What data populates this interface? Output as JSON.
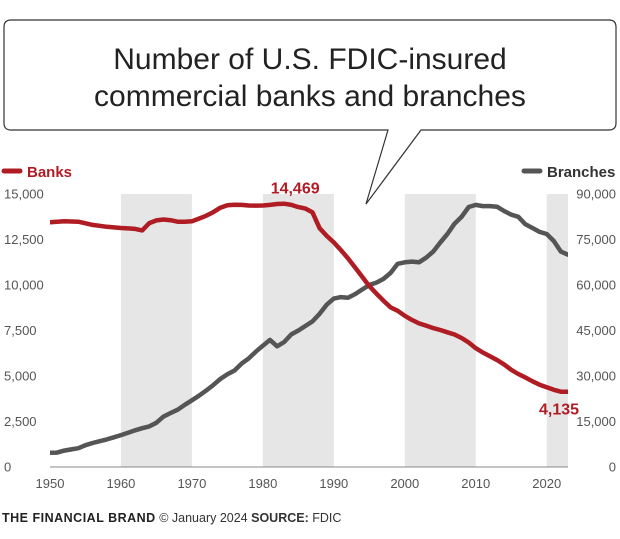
{
  "chart_data": {
    "type": "line",
    "title_lines": [
      "Number of U.S. FDIC-insured",
      "commercial banks and branches"
    ],
    "x_ticks": [
      "1950",
      "1960",
      "1970",
      "1980",
      "1990",
      "2000",
      "2010",
      "2020"
    ],
    "xlim": [
      1950,
      2023
    ],
    "y_left": {
      "ticks": [
        "0",
        "2,500",
        "5,000",
        "7,500",
        "10,000",
        "12,500",
        "15,000"
      ],
      "ylim": [
        0,
        15000
      ]
    },
    "y_right": {
      "ticks": [
        "0",
        "15,000",
        "30,000",
        "45,000",
        "60,000",
        "75,000",
        "90,000"
      ],
      "ylim": [
        0,
        90000
      ]
    },
    "shaded_periods": [
      [
        1960,
        1970
      ],
      [
        1980,
        1990
      ],
      [
        2000,
        2010
      ],
      [
        2020,
        2023
      ]
    ],
    "grid": false,
    "legend_placement": "top",
    "series": [
      {
        "name": "Banks",
        "axis": "left",
        "color": "#b01c24",
        "x": [
          1950,
          1952,
          1954,
          1956,
          1958,
          1960,
          1961,
          1962,
          1963,
          1964,
          1965,
          1966,
          1967,
          1968,
          1969,
          1970,
          1971,
          1972,
          1973,
          1974,
          1975,
          1976,
          1977,
          1978,
          1979,
          1980,
          1981,
          1982,
          1983,
          1984,
          1985,
          1986,
          1987,
          1988,
          1989,
          1990,
          1991,
          1992,
          1993,
          1994,
          1995,
          1996,
          1997,
          1998,
          1999,
          2000,
          2001,
          2002,
          2003,
          2004,
          2005,
          2006,
          2007,
          2008,
          2009,
          2010,
          2011,
          2012,
          2013,
          2014,
          2015,
          2016,
          2017,
          2018,
          2019,
          2020,
          2021,
          2022,
          2023
        ],
        "values": [
          13446,
          13500,
          13480,
          13300,
          13200,
          13130,
          13110,
          13080,
          13000,
          13400,
          13550,
          13600,
          13560,
          13480,
          13480,
          13500,
          13650,
          13800,
          14000,
          14250,
          14380,
          14410,
          14400,
          14370,
          14360,
          14370,
          14400,
          14451,
          14469,
          14400,
          14280,
          14200,
          13990,
          13120,
          12700,
          12340,
          11920,
          11460,
          10960,
          10450,
          9940,
          9530,
          9140,
          8770,
          8580,
          8310,
          8080,
          7890,
          7770,
          7630,
          7530,
          7400,
          7280,
          7090,
          6840,
          6530,
          6290,
          6090,
          5880,
          5640,
          5340,
          5110,
          4920,
          4710,
          4520,
          4380,
          4240,
          4140,
          4135
        ]
      },
      {
        "name": "Branches",
        "axis": "right",
        "color": "#555555",
        "x": [
          1950,
          1951,
          1952,
          1953,
          1954,
          1955,
          1956,
          1957,
          1958,
          1959,
          1960,
          1961,
          1962,
          1963,
          1964,
          1965,
          1966,
          1967,
          1968,
          1969,
          1970,
          1971,
          1972,
          1973,
          1974,
          1975,
          1976,
          1977,
          1978,
          1979,
          1980,
          1981,
          1982,
          1983,
          1984,
          1985,
          1986,
          1987,
          1988,
          1989,
          1990,
          1991,
          1992,
          1993,
          1994,
          1995,
          1996,
          1997,
          1998,
          1999,
          2000,
          2001,
          2002,
          2003,
          2004,
          2005,
          2006,
          2007,
          2008,
          2009,
          2010,
          2011,
          2012,
          2013,
          2014,
          2015,
          2016,
          2017,
          2018,
          2019,
          2020,
          2021,
          2022,
          2023
        ],
        "values": [
          4700,
          4750,
          5400,
          5800,
          6200,
          7200,
          7900,
          8500,
          9100,
          9800,
          10500,
          11300,
          12100,
          12800,
          13400,
          14600,
          16600,
          17800,
          18900,
          20500,
          22000,
          23500,
          25200,
          27000,
          29000,
          30600,
          31800,
          34100,
          35800,
          38000,
          40000,
          41900,
          39800,
          41200,
          43700,
          45000,
          46500,
          48000,
          50500,
          53500,
          55500,
          56000,
          55800,
          57000,
          58500,
          60000,
          60800,
          62000,
          64000,
          67000,
          67500,
          67700,
          67500,
          69000,
          71000,
          74000,
          76800,
          80200,
          82500,
          85700,
          86400,
          86000,
          86000,
          85800,
          84400,
          83200,
          82500,
          80000,
          78800,
          77500,
          76800,
          74500,
          71000,
          70000
        ]
      }
    ],
    "annotations": [
      {
        "label": "14,469",
        "series": "Banks",
        "x": 1983,
        "value": 14469
      },
      {
        "label": "4,135",
        "series": "Banks",
        "x": 2023,
        "value": 4135
      }
    ]
  },
  "footer": {
    "brand": "THE FINANCIAL BRAND",
    "credit": "© January 2024",
    "source_label": "SOURCE:",
    "source": "FDIC"
  }
}
